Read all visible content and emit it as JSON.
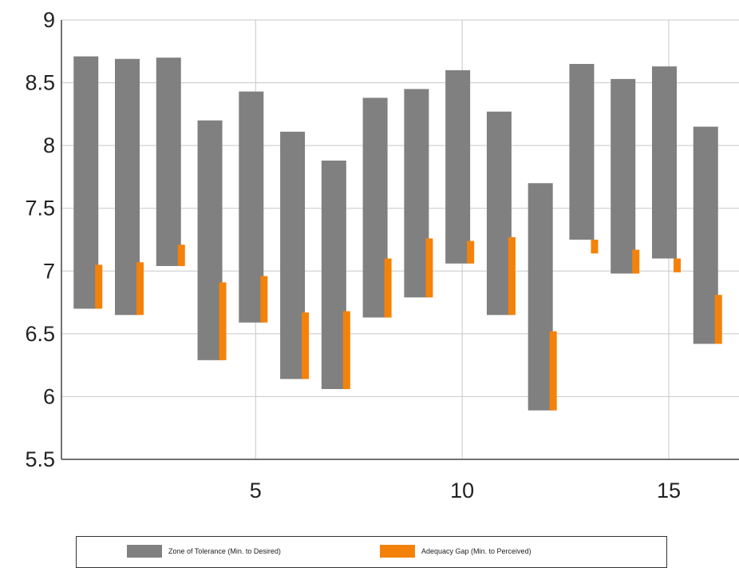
{
  "chart_data": {
    "type": "bar",
    "subtype": "floating-range",
    "x": [
      1,
      2,
      3,
      4,
      5,
      6,
      7,
      8,
      9,
      10,
      11,
      12,
      13,
      14,
      15,
      16
    ],
    "xlim": [
      0.3,
      16.7
    ],
    "ylim": [
      5.5,
      9
    ],
    "x_ticks": [
      5,
      10,
      15
    ],
    "y_ticks": [
      5.5,
      6,
      6.5,
      7,
      7.5,
      8,
      8.5,
      9
    ],
    "x_tick_labels": [
      "5",
      "10",
      "15"
    ],
    "y_tick_labels": [
      "5.5",
      "6",
      "6.5",
      "7",
      "7.5",
      "8",
      "8.5",
      "9"
    ],
    "grid": true,
    "legend_position": "bottom",
    "series": [
      {
        "name": "Zone of Tolerance (Min. to Desired)",
        "color": "#808080",
        "low": [
          6.7,
          6.65,
          7.04,
          6.29,
          6.59,
          6.14,
          6.06,
          6.63,
          6.79,
          7.06,
          6.65,
          5.89,
          7.25,
          6.98,
          7.1,
          6.42
        ],
        "high": [
          8.71,
          8.69,
          8.7,
          8.2,
          8.43,
          8.11,
          7.88,
          8.38,
          8.45,
          8.6,
          8.27,
          7.7,
          8.65,
          8.53,
          8.63,
          8.15
        ]
      },
      {
        "name": "Adequacy Gap (Min. to Perceived)",
        "color": "#f4820a",
        "low": [
          6.7,
          6.65,
          7.04,
          6.29,
          6.59,
          6.14,
          6.06,
          6.63,
          6.79,
          7.06,
          6.65,
          5.89,
          7.14,
          6.98,
          6.99,
          6.42
        ],
        "high": [
          7.05,
          7.07,
          7.21,
          6.91,
          6.96,
          6.67,
          6.68,
          7.1,
          7.26,
          7.24,
          7.27,
          6.52,
          7.25,
          7.17,
          7.1,
          6.81
        ]
      }
    ]
  }
}
